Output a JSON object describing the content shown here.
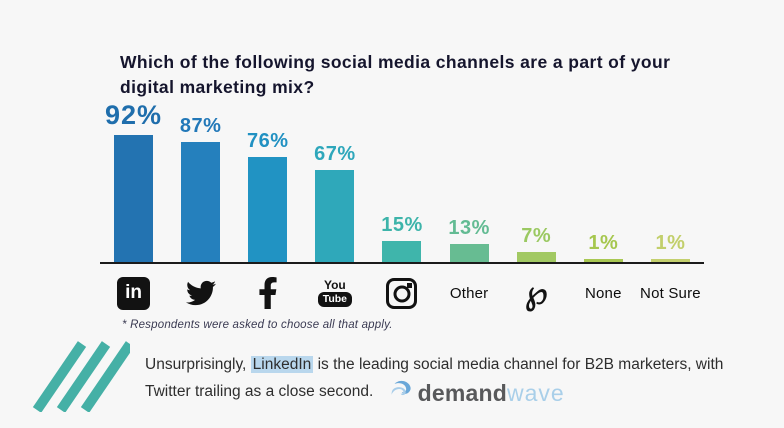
{
  "page": {
    "background": "#f7f7f7",
    "title_lines": [
      "Which of the following social media channels are a part of your",
      "digital marketing mix?"
    ]
  },
  "chart_data": {
    "type": "bar",
    "title": "Which of the following social media channels are a part of your digital marketing mix?",
    "categories": [
      "LinkedIn",
      "Twitter",
      "Facebook",
      "YouTube",
      "Instagram",
      "Other",
      "Pinterest",
      "None",
      "Not Sure"
    ],
    "values": [
      92,
      87,
      76,
      67,
      15,
      13,
      7,
      1,
      1
    ],
    "value_labels": [
      "92%",
      "87%",
      "76%",
      "67%",
      "15%",
      "13%",
      "7%",
      "1%",
      "1%"
    ],
    "bar_colors": [
      "#2373B1",
      "#2580BD",
      "#2193C3",
      "#2FA8BA",
      "#3FB5AB",
      "#67BC92",
      "#A2C963",
      "#A9C853",
      "#C4D06E"
    ],
    "value_label_colors": [
      "#1F6EAC",
      "#2278B8",
      "#2191C2",
      "#2EA7BB",
      "#3DB4AA",
      "#63BB93",
      "#9BC962",
      "#A6C74F",
      "#C2CF6B"
    ],
    "ylim": [
      0,
      100
    ],
    "grid": false,
    "legend": "none",
    "value_labels_position": "above bars",
    "category_axis_note": "icons shown for LinkedIn, Twitter, Facebook, YouTube, Instagram, Pinterest; plain text for Other, None, Not Sure",
    "footnote": "* Respondents were asked to choose all that apply."
  },
  "category_display": [
    {
      "icon": "linkedin-icon"
    },
    {
      "icon": "twitter-icon"
    },
    {
      "icon": "facebook-icon"
    },
    {
      "icon": "youtube-icon"
    },
    {
      "icon": "instagram-icon"
    },
    {
      "text": "Other"
    },
    {
      "icon": "pinterest-icon"
    },
    {
      "text": "None"
    },
    {
      "text": "Not Sure"
    }
  ],
  "caption": {
    "pre": "Unsurprisingly, ",
    "highlight": "LinkedIn",
    "line1_rest": " is the leading social media channel for B2B marketers, with",
    "line2": "Twitter trailing as a close second.",
    "highlight_bg": "#b9d7ed"
  },
  "logo": {
    "word1": "demand",
    "word2": "wave",
    "word1_color": "#58595b",
    "word2_color": "#a9cfe9"
  },
  "decor": {
    "stripes_color": "#45b0a6",
    "baseline_color": "#1b1b1b"
  }
}
